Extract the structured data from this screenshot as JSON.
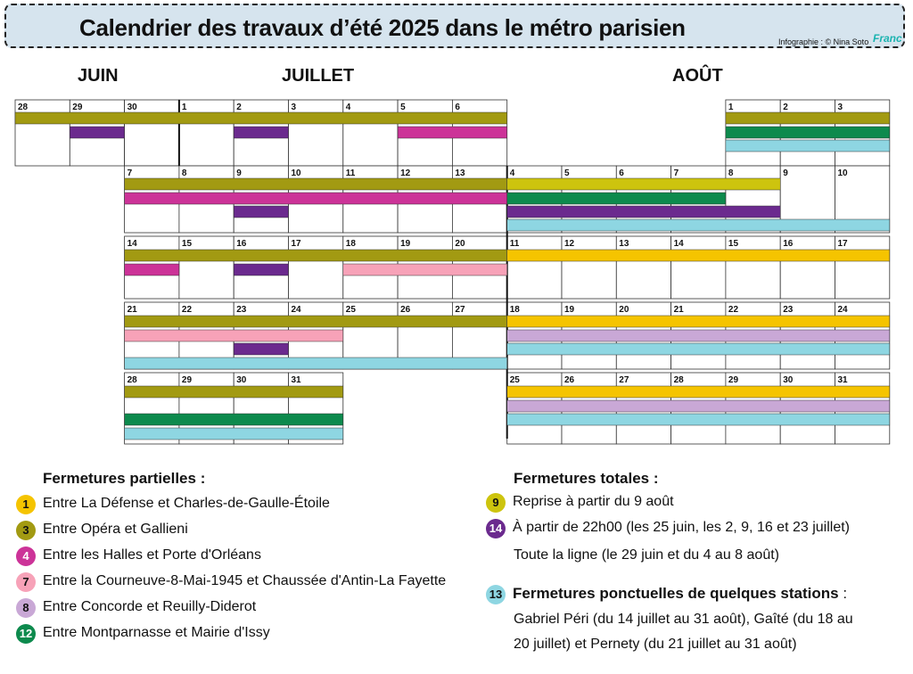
{
  "header": {
    "title": "Calendrier des travaux d’été 2025 dans le métro parisien",
    "credit": "Infographie : © Nina Soto",
    "credit_logo": "Franc"
  },
  "months": {
    "june": "JUIN",
    "july": "JUILLET",
    "august": "AOÛT"
  },
  "colors": {
    "line1": "#f5c400",
    "line3": "#a29a12",
    "line4": "#cc3398",
    "line7": "#f7a2b8",
    "line8": "#c9a8d6",
    "line9": "#cdc40e",
    "line12": "#0d8a4d",
    "line13": "#8ed6e2",
    "line14": "#6b2a8e"
  },
  "calendar": {
    "rows": [
      {
        "days": [
          "28",
          "29",
          "30",
          "1",
          "2",
          "3",
          "4",
          "5",
          "6",
          "",
          "",
          "",
          "",
          "1",
          "2",
          "3"
        ]
      },
      {
        "days": [
          "",
          "",
          "7",
          "8",
          "9",
          "10",
          "11",
          "12",
          "13",
          "4",
          "5",
          "6",
          "7",
          "8",
          "9",
          "10"
        ]
      },
      {
        "days": [
          "",
          "",
          "14",
          "15",
          "16",
          "17",
          "18",
          "19",
          "20",
          "11",
          "12",
          "13",
          "14",
          "15",
          "16",
          "17"
        ]
      },
      {
        "days": [
          "",
          "",
          "21",
          "22",
          "23",
          "24",
          "25",
          "26",
          "27",
          "18",
          "19",
          "20",
          "21",
          "22",
          "23",
          "24"
        ]
      },
      {
        "days": [
          "",
          "",
          "28",
          "29",
          "30",
          "31",
          "",
          "",
          "",
          "25",
          "26",
          "27",
          "28",
          "29",
          "30",
          "31"
        ]
      }
    ]
  },
  "legend": {
    "partial_title": "Fermetures partielles :",
    "partial": [
      {
        "line": "1",
        "text": "Entre La Défense et Charles-de-Gaulle-Étoile",
        "color": "#f5c400"
      },
      {
        "line": "3",
        "text": "Entre Opéra et Gallieni",
        "color": "#a29a12"
      },
      {
        "line": "4",
        "text": "Entre les Halles et Porte d'Orléans",
        "color": "#cc3398"
      },
      {
        "line": "7",
        "text": "Entre la Courneuve-8-Mai-1945 et Chaussée d'Antin-La Fayette",
        "color": "#f7a2b8"
      },
      {
        "line": "8",
        "text": "Entre Concorde et Reuilly-Diderot",
        "color": "#c9a8d6"
      },
      {
        "line": "12",
        "text": "Entre Montparnasse et Mairie d'Issy",
        "color": "#0d8a4d"
      }
    ],
    "total_title": "Fermetures totales :",
    "total": [
      {
        "line": "9",
        "text": "Reprise à partir du 9 août",
        "color": "#cdc40e"
      },
      {
        "line": "14",
        "text": "À partir de 22h00 (les 25 juin, les 2, 9, 16 et 23 juillet)",
        "color": "#6b2a8e"
      }
    ],
    "total_extra": "Toute la ligne  (le 29 juin et du 4 au 8 août)",
    "punctual": {
      "line": "13",
      "color": "#8ed6e2",
      "title": "Fermetures ponctuelles de quelques stations",
      "title_suffix": " :",
      "text1": "Gabriel Péri  (du 14 juillet au 31 août), Gaîté  (du 18 au",
      "text2": "20 juillet) et Pernety (du 21 juillet au 31 août)"
    }
  }
}
